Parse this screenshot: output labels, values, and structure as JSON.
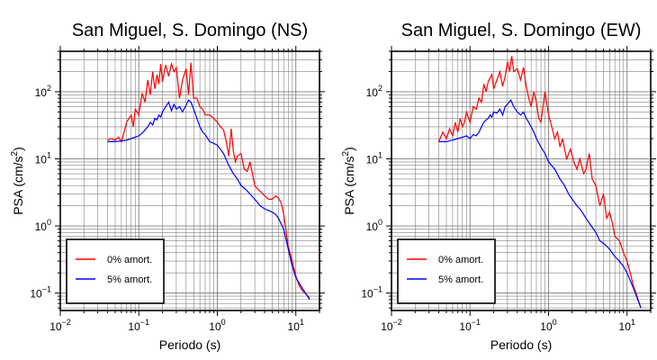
{
  "chart_data": [
    {
      "type": "line",
      "title": "San Miguel, S. Domingo (NS)",
      "xlabel": "Periodo (s)",
      "ylabel_main": "PSA (cm/s",
      "ylabel_sup": "2",
      "ylabel_end": ")",
      "xscale": "log",
      "yscale": "log",
      "xlim": [
        0.01,
        20
      ],
      "ylim": [
        0.055,
        400
      ],
      "grid": true,
      "legend_position": "bottom-left",
      "x_ticks": [
        {
          "base": "10",
          "exp": "−2"
        },
        {
          "base": "10",
          "exp": "−1"
        },
        {
          "base": "10",
          "exp": "0"
        },
        {
          "base": "10",
          "exp": "1"
        }
      ],
      "y_ticks": [
        {
          "base": "10",
          "exp": "−1"
        },
        {
          "base": "10",
          "exp": "0"
        },
        {
          "base": "10",
          "exp": "1"
        },
        {
          "base": "10",
          "exp": "2"
        }
      ],
      "series": [
        {
          "name": "0% amort.",
          "color": "#ff0000",
          "x": [
            0.04,
            0.045,
            0.05,
            0.055,
            0.06,
            0.065,
            0.07,
            0.075,
            0.08,
            0.085,
            0.09,
            0.1,
            0.11,
            0.12,
            0.13,
            0.14,
            0.15,
            0.16,
            0.17,
            0.18,
            0.19,
            0.2,
            0.22,
            0.24,
            0.26,
            0.28,
            0.3,
            0.33,
            0.36,
            0.4,
            0.43,
            0.46,
            0.5,
            0.55,
            0.6,
            0.65,
            0.7,
            0.8,
            0.9,
            1.0,
            1.1,
            1.2,
            1.3,
            1.4,
            1.5,
            1.6,
            1.7,
            1.8,
            2.0,
            2.2,
            2.4,
            2.6,
            2.8,
            3.0,
            3.3,
            3.6,
            4.0,
            4.5,
            5.0,
            5.5,
            6.0,
            6.5,
            7.0,
            8.0,
            9.0,
            10,
            11,
            12,
            13,
            15
          ],
          "y": [
            19,
            20,
            19,
            21,
            18,
            25,
            35,
            40,
            45,
            30,
            55,
            45,
            95,
            70,
            150,
            90,
            200,
            110,
            180,
            130,
            260,
            140,
            250,
            170,
            260,
            200,
            230,
            80,
            150,
            220,
            90,
            270,
            80,
            80,
            60,
            55,
            45,
            45,
            40,
            35,
            30,
            27,
            18,
            11,
            28,
            13,
            9,
            11,
            12,
            7,
            6.5,
            9,
            6,
            4,
            3.5,
            3.2,
            2.8,
            2.5,
            2.5,
            2.8,
            2.6,
            2.2,
            1.5,
            0.5,
            0.3,
            0.18,
            0.13,
            0.11,
            0.1,
            0.085
          ]
        },
        {
          "name": "5% amort.",
          "color": "#0000ff",
          "x": [
            0.04,
            0.05,
            0.06,
            0.07,
            0.08,
            0.09,
            0.1,
            0.11,
            0.12,
            0.13,
            0.14,
            0.15,
            0.16,
            0.17,
            0.18,
            0.19,
            0.2,
            0.22,
            0.24,
            0.26,
            0.28,
            0.3,
            0.33,
            0.36,
            0.4,
            0.43,
            0.46,
            0.5,
            0.55,
            0.6,
            0.65,
            0.7,
            0.8,
            0.9,
            1.0,
            1.2,
            1.4,
            1.6,
            1.8,
            2.0,
            2.3,
            2.6,
            3.0,
            3.5,
            4.0,
            4.5,
            5.0,
            5.5,
            6.0,
            7.0,
            8.0,
            9.0,
            10,
            12,
            15
          ],
          "y": [
            18,
            18,
            18.5,
            19,
            20,
            21,
            22,
            24,
            27,
            30,
            35,
            32,
            40,
            38,
            45,
            42,
            50,
            60,
            70,
            52,
            65,
            55,
            60,
            50,
            63,
            75,
            70,
            55,
            40,
            30,
            25,
            23,
            18,
            17,
            16,
            12,
            8,
            6,
            5,
            4,
            3.5,
            3,
            2.5,
            2,
            1.8,
            1.7,
            1.6,
            1.5,
            1.3,
            0.9,
            0.45,
            0.25,
            0.17,
            0.12,
            0.08
          ]
        }
      ]
    },
    {
      "type": "line",
      "title": "San Miguel, S. Domingo (EW)",
      "xlabel": "Periodo (s)",
      "ylabel_main": "PSA (cm/s",
      "ylabel_sup": "2",
      "ylabel_end": ")",
      "xscale": "log",
      "yscale": "log",
      "xlim": [
        0.01,
        20
      ],
      "ylim": [
        0.055,
        400
      ],
      "grid": true,
      "legend_position": "bottom-left",
      "x_ticks": [
        {
          "base": "10",
          "exp": "−2"
        },
        {
          "base": "10",
          "exp": "−1"
        },
        {
          "base": "10",
          "exp": "0"
        },
        {
          "base": "10",
          "exp": "1"
        }
      ],
      "y_ticks": [
        {
          "base": "10",
          "exp": "−1"
        },
        {
          "base": "10",
          "exp": "0"
        },
        {
          "base": "10",
          "exp": "1"
        },
        {
          "base": "10",
          "exp": "2"
        }
      ],
      "series": [
        {
          "name": "0% amort.",
          "color": "#ff0000",
          "x": [
            0.04,
            0.045,
            0.05,
            0.055,
            0.06,
            0.065,
            0.07,
            0.075,
            0.08,
            0.085,
            0.09,
            0.1,
            0.11,
            0.12,
            0.13,
            0.14,
            0.15,
            0.16,
            0.17,
            0.18,
            0.19,
            0.2,
            0.22,
            0.24,
            0.26,
            0.28,
            0.3,
            0.32,
            0.34,
            0.36,
            0.4,
            0.44,
            0.48,
            0.52,
            0.56,
            0.6,
            0.65,
            0.7,
            0.75,
            0.8,
            0.9,
            1.0,
            1.1,
            1.2,
            1.3,
            1.4,
            1.5,
            1.7,
            1.9,
            2.1,
            2.3,
            2.5,
            2.8,
            3.0,
            3.3,
            3.6,
            4.0,
            4.5,
            5.0,
            5.5,
            6.0,
            6.5,
            7.0,
            8.0,
            9.0,
            10,
            11,
            12,
            13,
            15
          ],
          "y": [
            18,
            25,
            20,
            28,
            22,
            35,
            25,
            40,
            30,
            35,
            50,
            35,
            60,
            55,
            80,
            70,
            130,
            100,
            140,
            160,
            180,
            110,
            150,
            200,
            120,
            170,
            280,
            200,
            340,
            200,
            220,
            150,
            230,
            120,
            80,
            60,
            100,
            70,
            40,
            35,
            100,
            45,
            30,
            20,
            25,
            15,
            20,
            10,
            14,
            9,
            7,
            10,
            6,
            7,
            12,
            5,
            4,
            2,
            3,
            1.3,
            1.6,
            1.1,
            0.7,
            0.6,
            0.4,
            0.3,
            0.2,
            0.13,
            0.1,
            0.06
          ]
        },
        {
          "name": "5% amort.",
          "color": "#0000ff",
          "x": [
            0.04,
            0.05,
            0.06,
            0.07,
            0.08,
            0.09,
            0.1,
            0.11,
            0.12,
            0.13,
            0.14,
            0.15,
            0.16,
            0.17,
            0.18,
            0.19,
            0.2,
            0.22,
            0.24,
            0.26,
            0.28,
            0.3,
            0.33,
            0.36,
            0.4,
            0.44,
            0.48,
            0.52,
            0.56,
            0.6,
            0.65,
            0.7,
            0.8,
            0.9,
            1.0,
            1.2,
            1.4,
            1.6,
            1.8,
            2.0,
            2.3,
            2.6,
            3.0,
            3.5,
            4.0,
            4.5,
            5.0,
            5.5,
            6.0,
            7.0,
            8.0,
            9.0,
            10,
            12,
            15
          ],
          "y": [
            18,
            18,
            19,
            20,
            21,
            22,
            20,
            23,
            22,
            25,
            30,
            35,
            38,
            40,
            45,
            42,
            50,
            48,
            55,
            45,
            60,
            65,
            75,
            60,
            50,
            45,
            50,
            40,
            35,
            30,
            25,
            20,
            15,
            12,
            9,
            7,
            5,
            4,
            3,
            2.5,
            2,
            1.7,
            1.3,
            1,
            0.8,
            0.6,
            0.55,
            0.5,
            0.45,
            0.35,
            0.3,
            0.25,
            0.2,
            0.12,
            0.06
          ]
        }
      ]
    }
  ]
}
